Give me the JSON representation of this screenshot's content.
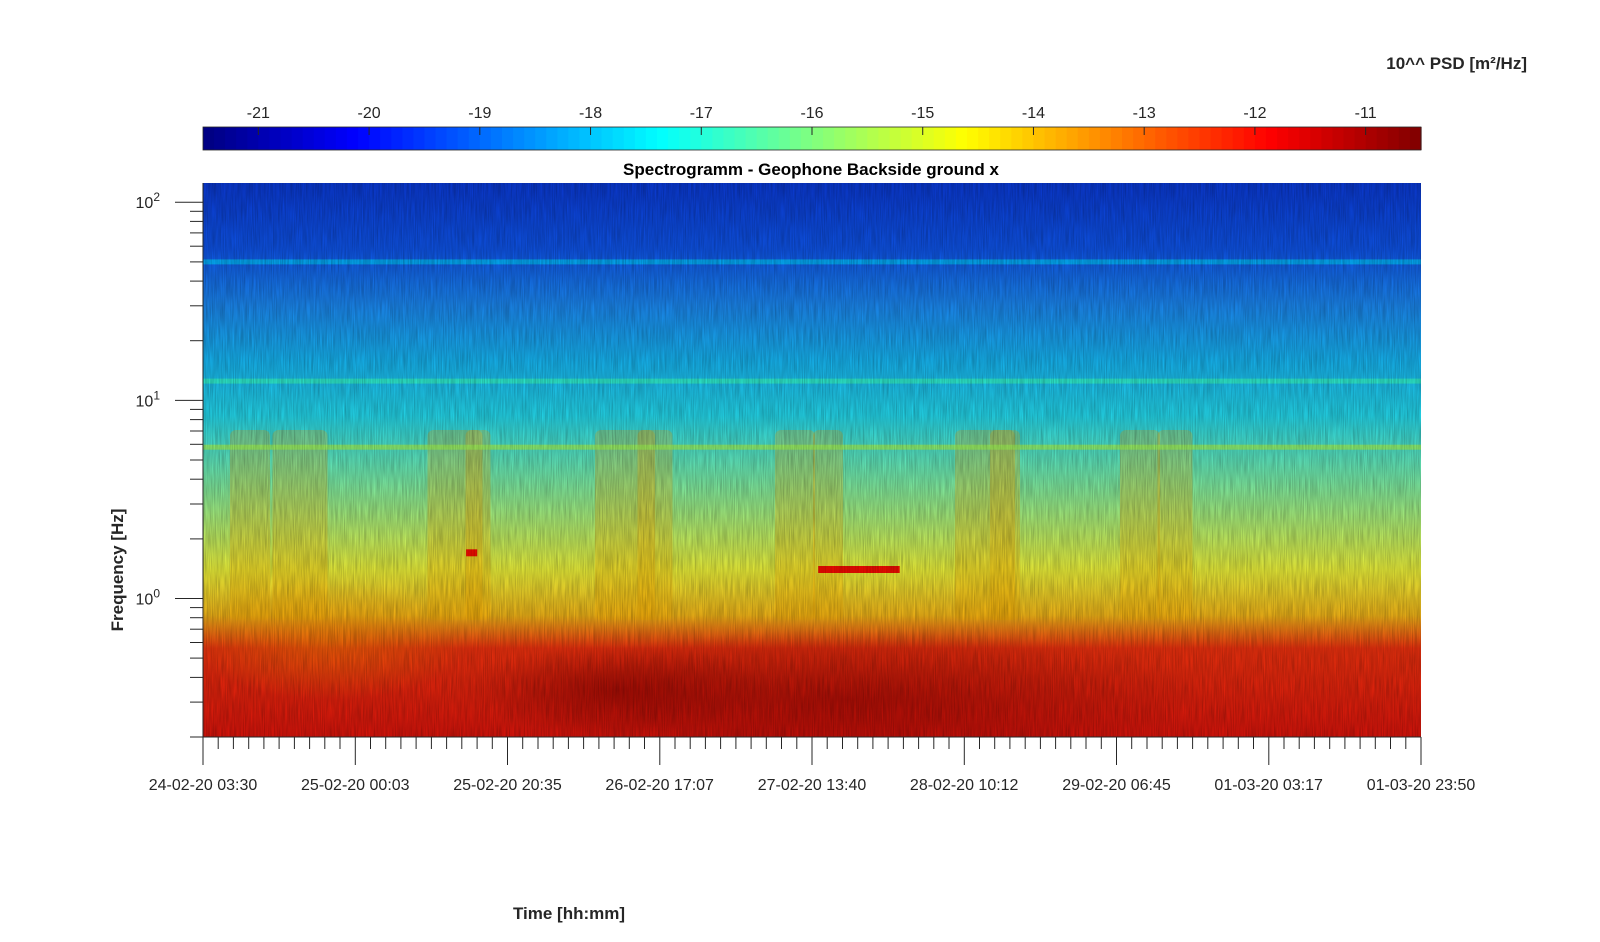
{
  "chart_data": {
    "type": "heatmap",
    "title": "Spectrogramm - Geophone Backside ground x",
    "xlabel": "Time [hh:mm]",
    "ylabel": "Frequency [Hz]",
    "x_tick_labels": [
      "24-02-20 03:30",
      "25-02-20 00:03",
      "25-02-20 20:35",
      "26-02-20 17:07",
      "27-02-20 13:40",
      "28-02-20 10:12",
      "29-02-20 06:45",
      "01-03-20 03:17",
      "01-03-20 23:50"
    ],
    "y_scale": "log",
    "y_tick_labels": [
      {
        "base": "10",
        "exp": "0",
        "value": 1
      },
      {
        "base": "10",
        "exp": "1",
        "value": 10
      },
      {
        "base": "10",
        "exp": "2",
        "value": 100
      }
    ],
    "ylim": [
      0.2,
      125
    ],
    "colorbar": {
      "title": "10^^ PSD [m²/Hz]",
      "tick_labels": [
        "-21",
        "-20",
        "-19",
        "-18",
        "-17",
        "-16",
        "-15",
        "-14",
        "-13",
        "-12",
        "-11"
      ],
      "range": [
        -21.5,
        -10.5
      ],
      "colormap": "jet",
      "placement": "top"
    },
    "psd_profile_log10": [
      {
        "freq_hz": 0.2,
        "psd": -11.7
      },
      {
        "freq_hz": 0.5,
        "psd": -11.9
      },
      {
        "freq_hz": 0.8,
        "psd": -13.0
      },
      {
        "freq_hz": 1.2,
        "psd": -14.8
      },
      {
        "freq_hz": 3,
        "psd": -16.0
      },
      {
        "freq_hz": 10,
        "psd": -17.6
      },
      {
        "freq_hz": 20,
        "psd": -18.4
      },
      {
        "freq_hz": 50,
        "psd": -19.3
      },
      {
        "freq_hz": 125,
        "psd": -19.8
      }
    ],
    "features": [
      {
        "type": "band",
        "freq_hz": 5.8,
        "psd": -15.6
      },
      {
        "type": "band",
        "freq_hz": 12.5,
        "psd": -16.8
      },
      {
        "type": "band",
        "freq_hz": 50,
        "psd": -18.0
      },
      {
        "type": "segment",
        "t_start": "27-02-20 14:30",
        "t_end": "28-02-20 01:30",
        "freq_hz": 1.4,
        "psd": -12.0
      },
      {
        "type": "segment",
        "t_start": "25-02-20 15:00",
        "t_end": "25-02-20 16:30",
        "freq_hz": 1.7,
        "psd": -12.0
      }
    ],
    "grid": false
  }
}
